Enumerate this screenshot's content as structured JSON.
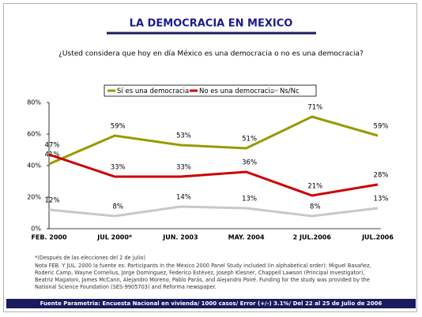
{
  "chart_data": {
    "type": "line",
    "title": "LA DEMOCRACIA EN MEXICO",
    "subtitle": "¿Usted considera que hoy en día México es una democracia o no es una democracia?",
    "categories": [
      "FEB. 2000",
      "JUL 2000*",
      "JUN. 2003",
      "MAY. 2004",
      "2 JUL.2006",
      "JUL.2006"
    ],
    "series": [
      {
        "name": "Sí es una democracia",
        "color": "#999900",
        "values": [
          41,
          59,
          53,
          51,
          71,
          59
        ],
        "value_labels": [
          "41%",
          "59%",
          "53%",
          "51%",
          "71%",
          "59%"
        ]
      },
      {
        "name": "No es una democracia",
        "color": "#cc0000",
        "values": [
          47,
          33,
          33,
          36,
          21,
          28
        ],
        "value_labels": [
          "47%",
          "33%",
          "33%",
          "36%",
          "21%",
          "28%"
        ]
      },
      {
        "name": "Ns/Nc",
        "color": "#c8c8c8",
        "values": [
          12,
          8,
          14,
          13,
          8,
          13
        ],
        "value_labels": [
          "12%",
          "8%",
          "14%",
          "13%",
          "8%",
          "13%"
        ]
      }
    ],
    "ylim": [
      0,
      80
    ],
    "yticks": [
      {
        "value": 0,
        "label": "0%"
      },
      {
        "value": 20,
        "label": "20%"
      },
      {
        "value": 40,
        "label": "40%"
      },
      {
        "value": 60,
        "label": "60%"
      },
      {
        "value": 80,
        "label": "80%"
      }
    ],
    "grid": false,
    "legend": "top",
    "notes": [
      "*(Después de las elecciones del 2 de julio)",
      "Nota FEB. Y JUL. 2000 la fuente es: Participants in the Mexico 2000 Panel Study included (in alphabetical order): Miguel Basañez, Roderic Camp, Wayne Cornelius, Jorge Domínguez, Federico Estévez, Joseph Klesner, Chappell Lawson (Principal Investigator), Beatriz Magaloni, James McCann, Alejandro Moreno, Pablo Parás, and Alejandro Poiré. Funding for the study was provided by the National Science Foundation (SES-9905703) and Reforma newspaper."
    ],
    "footer": "Fuente Parametria: Encuesta Nacional en vivienda/ 1000 casos/ Error (+/-) 3.1%/ Del 22 al 25 de Julio de 2006"
  }
}
